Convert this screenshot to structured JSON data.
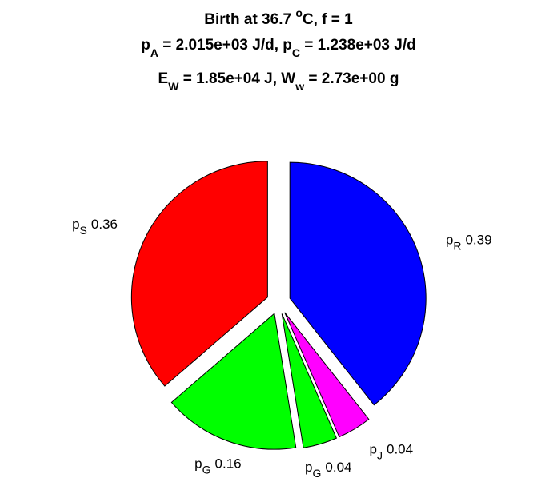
{
  "chart_data": {
    "type": "pie",
    "title": [
      [
        {
          "text": "Birth at 36.7 "
        },
        {
          "text": "o",
          "shift": "sup"
        },
        {
          "text": "C, f = 1"
        }
      ],
      [
        {
          "text": "p"
        },
        {
          "text": "A",
          "shift": "sub"
        },
        {
          "text": " = 2.015e+03 J/d, p"
        },
        {
          "text": "C",
          "shift": "sub"
        },
        {
          "text": " = 1.238e+03 J/d"
        }
      ],
      [
        {
          "text": "E"
        },
        {
          "text": "W",
          "shift": "sub"
        },
        {
          "text": " = 1.85e+04 J, W"
        },
        {
          "text": "w",
          "shift": "sub"
        },
        {
          "text": " = 2.73e+00 g"
        }
      ]
    ],
    "slices": [
      {
        "name": "p",
        "subscript": "R",
        "value": 0.39,
        "color": "#0000ff"
      },
      {
        "name": "p",
        "subscript": "J",
        "value": 0.04,
        "color": "#ff00ff"
      },
      {
        "name": "p",
        "subscript": "G",
        "value": 0.04,
        "color": "#00ff00"
      },
      {
        "name": "p",
        "subscript": "G",
        "value": 0.16,
        "color": "#00ff00"
      },
      {
        "name": "p",
        "subscript": "S",
        "value": 0.36,
        "color": "#ff0000"
      }
    ],
    "direction": "clockwise",
    "start": "top",
    "exploded": true
  }
}
